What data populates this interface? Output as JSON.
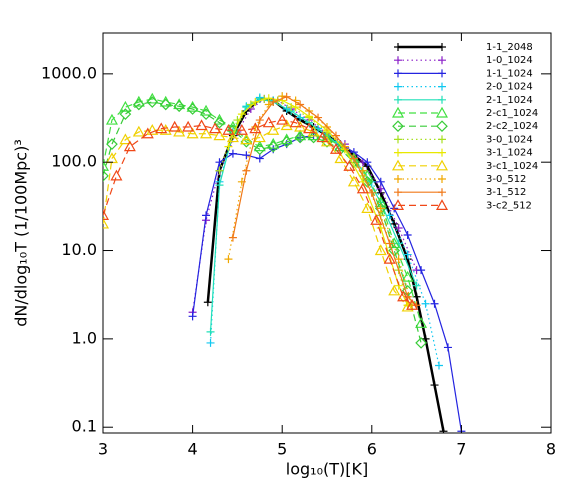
{
  "chart_data": {
    "type": "line",
    "x_label": "log₁₀(T)[K]",
    "y_label": "dN/dlog₁₀T (1/100Mpc)³",
    "log_y": true,
    "xlim": [
      3,
      8
    ],
    "ylim": [
      0.086,
      2900
    ],
    "xticks": [
      3,
      4,
      5,
      6,
      7,
      8
    ],
    "yticks": [
      {
        "value": 1000,
        "label": "1000.0"
      },
      {
        "value": 100,
        "label": "100.0"
      },
      {
        "value": 10,
        "label": "10.0"
      },
      {
        "value": 1,
        "label": "1.0"
      },
      0.1
    ],
    "legend": "upper right",
    "series": [
      {
        "name": "1-1_2048",
        "color": "#000000",
        "dash": "solid",
        "marker": "plus",
        "width": 2.5,
        "x": [
          4.17,
          4.3,
          4.45,
          4.6,
          4.75,
          4.9,
          5.05,
          5.2,
          5.35,
          5.5,
          5.65,
          5.8,
          5.95,
          6.1,
          6.25,
          6.4,
          6.5,
          6.6,
          6.7,
          6.8
        ],
        "values": [
          2.6,
          80,
          200,
          380,
          520,
          500,
          380,
          300,
          250,
          200,
          160,
          120,
          90,
          45,
          20,
          8,
          3,
          1.0,
          0.3,
          0.09
        ]
      },
      {
        "name": "1-0_1024",
        "color": "#8a1fc8",
        "dash": "dotted",
        "marker": "plus",
        "width": 1.2,
        "x": [
          4.0,
          4.15,
          4.3,
          4.5,
          4.65,
          4.8,
          4.95,
          5.1,
          5.3,
          5.5,
          5.7,
          5.9,
          6.1,
          6.3,
          6.5
        ],
        "values": [
          2,
          22,
          80,
          220,
          400,
          520,
          500,
          400,
          300,
          210,
          160,
          100,
          50,
          18,
          6
        ]
      },
      {
        "name": "1-1_1024",
        "color": "#2424e0",
        "dash": "solid",
        "marker": "plus",
        "width": 1.2,
        "x": [
          4.0,
          4.15,
          4.3,
          4.45,
          4.6,
          4.75,
          4.9,
          5.05,
          5.2,
          5.35,
          5.5,
          5.65,
          5.8,
          5.95,
          6.1,
          6.25,
          6.4,
          6.55,
          6.7,
          6.85,
          7.0
        ],
        "values": [
          1.8,
          25,
          100,
          125,
          120,
          110,
          140,
          160,
          190,
          200,
          190,
          160,
          130,
          100,
          60,
          30,
          15,
          6,
          2.5,
          0.8,
          0.09
        ]
      },
      {
        "name": "2-0_1024",
        "color": "#10c8f0",
        "dash": "dotted",
        "marker": "plus",
        "width": 1.2,
        "x": [
          4.2,
          4.3,
          4.45,
          4.6,
          4.75,
          4.9,
          5.05,
          5.2,
          5.4,
          5.6,
          5.8,
          6.0,
          6.2,
          6.4,
          6.6,
          6.75
        ],
        "values": [
          0.9,
          60,
          220,
          430,
          540,
          500,
          400,
          320,
          240,
          170,
          110,
          60,
          25,
          9,
          2.5,
          0.5
        ]
      },
      {
        "name": "2-1_1024",
        "color": "#20e0b8",
        "dash": "solid",
        "marker": "plus",
        "width": 1.2,
        "x": [
          4.2,
          4.3,
          4.45,
          4.6,
          4.75,
          4.9,
          5.1,
          5.3,
          5.5,
          5.7,
          5.9,
          6.1,
          6.3,
          6.5
        ],
        "values": [
          1.2,
          55,
          210,
          420,
          520,
          480,
          380,
          280,
          200,
          140,
          80,
          35,
          12,
          4
        ]
      },
      {
        "name": "2-c1_1024",
        "color": "#40e040",
        "dash": "dashed",
        "marker": "triangle",
        "width": 1.2,
        "x": [
          3.0,
          3.1,
          3.25,
          3.4,
          3.55,
          3.7,
          3.85,
          4.0,
          4.15,
          4.3,
          4.45,
          4.6,
          4.75,
          4.9,
          5.05,
          5.2,
          5.35,
          5.5,
          5.65,
          5.8,
          5.95,
          6.1,
          6.25,
          6.4,
          6.55
        ],
        "values": [
          90,
          300,
          420,
          480,
          520,
          480,
          450,
          420,
          380,
          300,
          250,
          180,
          150,
          160,
          180,
          200,
          200,
          190,
          150,
          110,
          70,
          35,
          12,
          5,
          1.5
        ]
      },
      {
        "name": "2-c2_1024",
        "color": "#38cc38",
        "dash": "dashed",
        "marker": "diamond",
        "width": 1.2,
        "x": [
          3.0,
          3.1,
          3.25,
          3.4,
          3.55,
          3.7,
          3.85,
          4.0,
          4.15,
          4.3,
          4.45,
          4.6,
          4.75,
          4.9,
          5.05,
          5.2,
          5.35,
          5.5,
          5.65,
          5.8,
          5.95,
          6.1,
          6.25,
          6.4,
          6.55
        ],
        "values": [
          70,
          160,
          350,
          450,
          480,
          450,
          430,
          400,
          350,
          280,
          230,
          170,
          140,
          150,
          170,
          190,
          190,
          170,
          140,
          100,
          60,
          30,
          10,
          3.5,
          0.9
        ]
      },
      {
        "name": "3-0_1024",
        "color": "#a8e020",
        "dash": "dotted",
        "marker": "plus",
        "width": 1.2,
        "x": [
          4.3,
          4.5,
          4.65,
          4.8,
          4.95,
          5.1,
          5.3,
          5.5,
          5.7,
          5.9,
          6.1,
          6.3,
          6.4
        ],
        "values": [
          80,
          300,
          450,
          520,
          500,
          420,
          320,
          220,
          140,
          70,
          25,
          6,
          2.4
        ]
      },
      {
        "name": "3-1_1024",
        "color": "#e8e800",
        "dash": "solid",
        "marker": "plus",
        "width": 1.2,
        "x": [
          4.4,
          4.55,
          4.7,
          4.85,
          5.0,
          5.15,
          5.3,
          5.5,
          5.7,
          5.9,
          6.1,
          6.3,
          6.4
        ],
        "values": [
          150,
          350,
          480,
          530,
          500,
          420,
          330,
          230,
          140,
          60,
          18,
          4,
          2.4
        ]
      },
      {
        "name": "3-c1_1024",
        "color": "#f0d000",
        "dash": "dashed",
        "marker": "triangle",
        "width": 1.2,
        "x": [
          3.0,
          3.1,
          3.25,
          3.4,
          3.55,
          3.7,
          3.85,
          4.0,
          4.15,
          4.3,
          4.45,
          4.6,
          4.75,
          4.9,
          5.05,
          5.2,
          5.35,
          5.5,
          5.65,
          5.8,
          5.95,
          6.1,
          6.25,
          6.4
        ],
        "values": [
          20,
          110,
          180,
          220,
          230,
          230,
          220,
          210,
          210,
          200,
          190,
          180,
          190,
          230,
          260,
          250,
          220,
          170,
          110,
          60,
          30,
          10,
          3.5,
          2.3
        ]
      },
      {
        "name": "3-0_512",
        "color": "#f0a800",
        "dash": "dotted",
        "marker": "plus",
        "width": 1.2,
        "x": [
          4.4,
          4.55,
          4.7,
          4.85,
          5.0,
          5.15,
          5.3,
          5.5,
          5.7,
          5.9,
          6.1,
          6.3,
          6.45
        ],
        "values": [
          8,
          60,
          250,
          450,
          560,
          500,
          380,
          250,
          150,
          80,
          30,
          8,
          2.4
        ]
      },
      {
        "name": "3-1_512",
        "color": "#f07818",
        "dash": "solid",
        "marker": "plus",
        "width": 1.2,
        "x": [
          4.45,
          4.6,
          4.75,
          4.9,
          5.05,
          5.2,
          5.4,
          5.6,
          5.8,
          6.0,
          6.2,
          6.4,
          6.5
        ],
        "values": [
          14,
          80,
          300,
          480,
          550,
          450,
          320,
          200,
          110,
          45,
          12,
          3,
          2.4
        ]
      },
      {
        "name": "3-c2_512",
        "color": "#f04818",
        "dash": "dashed",
        "marker": "triangle",
        "width": 1.2,
        "x": [
          3.0,
          3.15,
          3.3,
          3.5,
          3.65,
          3.8,
          3.95,
          4.1,
          4.25,
          4.4,
          4.55,
          4.7,
          4.85,
          5.0,
          5.15,
          5.3,
          5.45,
          5.6,
          5.75,
          5.9,
          6.05,
          6.2,
          6.35,
          6.45
        ],
        "values": [
          25,
          70,
          150,
          210,
          240,
          250,
          250,
          260,
          240,
          230,
          230,
          240,
          280,
          300,
          280,
          240,
          190,
          140,
          90,
          50,
          22,
          8,
          3,
          2.4
        ]
      }
    ]
  }
}
